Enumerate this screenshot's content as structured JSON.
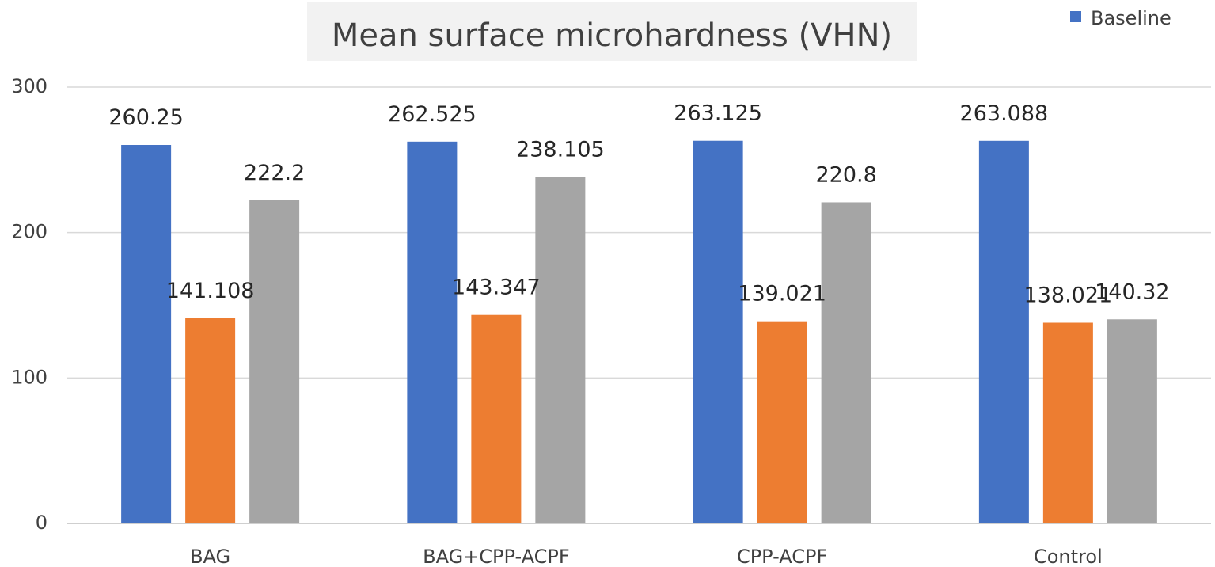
{
  "chart_data": {
    "type": "bar",
    "title": "Mean surface microhardness (VHN)",
    "categories": [
      "BAG",
      "BAG+CPP-ACPF",
      "CPP-ACPF",
      "Control"
    ],
    "series": [
      {
        "name": "Baseline",
        "color": "#4472c4",
        "values": [
          260.25,
          262.525,
          263.125,
          263.088
        ],
        "labels": [
          "260.25",
          "262.525",
          "263.125",
          "263.088"
        ]
      },
      {
        "color": "#ed7d31",
        "values": [
          141.108,
          143.347,
          139.021,
          138.021
        ],
        "labels": [
          "141.108",
          "143.347",
          "139.021",
          "138.021"
        ]
      },
      {
        "color": "#a5a5a5",
        "values": [
          222.2,
          238.105,
          220.8,
          140.32
        ],
        "labels": [
          "222.2",
          "238.105",
          "220.8",
          "140.32"
        ]
      }
    ],
    "yticks": [
      "0",
      "100",
      "200",
      "300"
    ],
    "ylim": [
      0,
      300
    ],
    "grid": true,
    "legend_position": "top-right"
  }
}
